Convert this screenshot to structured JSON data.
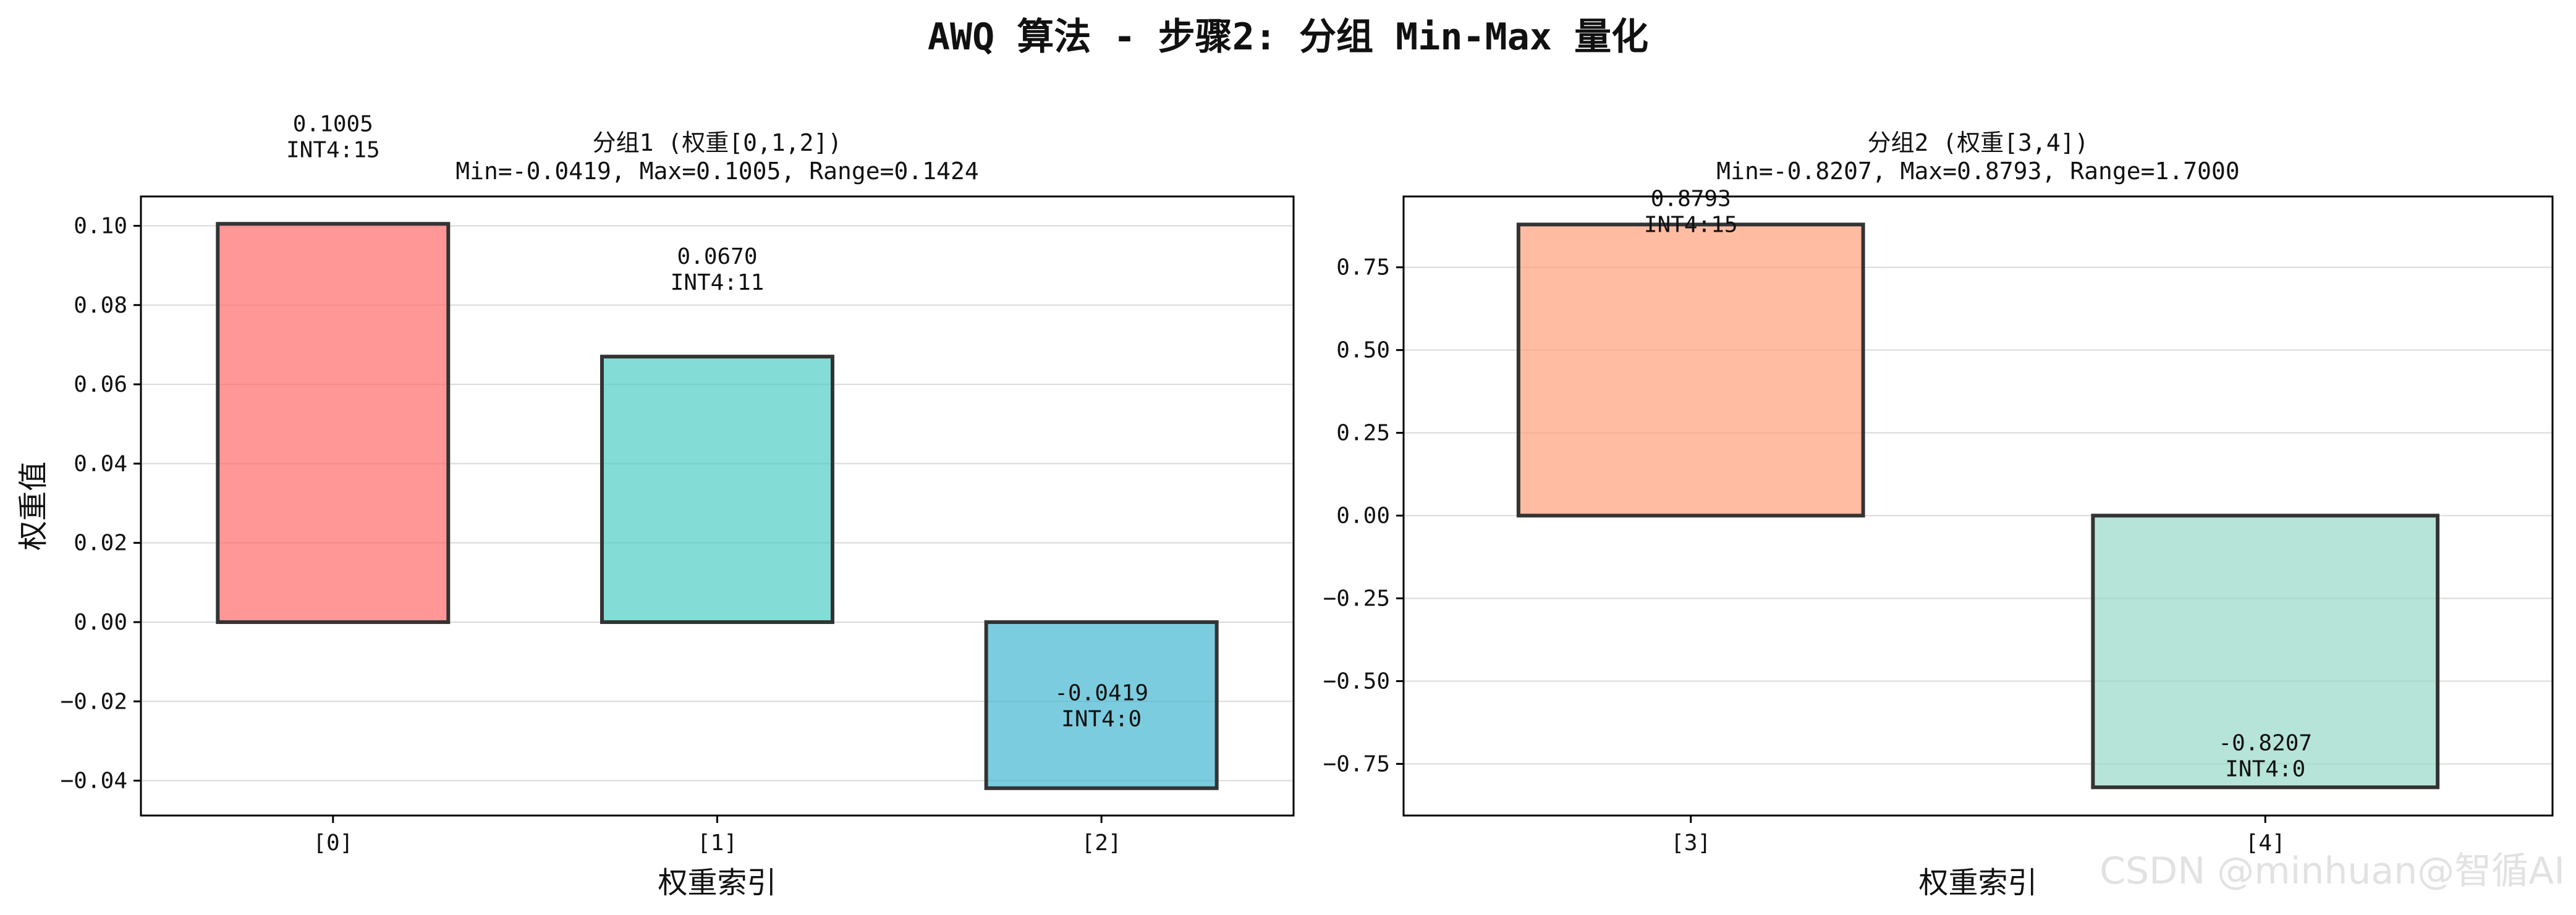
{
  "figure": {
    "suptitle": "AWQ 算法 - 步骤2: 分组 Min-Max 量化",
    "watermark": "CSDN @minhuan@智循AI"
  },
  "chart_data": [
    {
      "type": "bar",
      "title": "分组1 (权重[0,1,2])",
      "subtitle": "Min=-0.0419, Max=0.1005, Range=0.1424",
      "xlabel": "权重索引",
      "ylabel": "权重值",
      "categories": [
        "[0]",
        "[1]",
        "[2]"
      ],
      "values": [
        0.1005,
        0.067,
        -0.0419
      ],
      "int4": [
        15,
        11,
        0
      ],
      "value_labels": [
        "0.1005",
        "0.0670",
        "-0.0419"
      ],
      "int4_labels": [
        "INT4:15",
        "INT4:11",
        "INT4:0"
      ],
      "colors": [
        "#ff6b6b",
        "#4ecdc4",
        "#45b7d1"
      ],
      "ylim": [
        -0.0488,
        0.1074
      ],
      "yticks": [
        -0.04,
        -0.02,
        0.0,
        0.02,
        0.04,
        0.06,
        0.08,
        0.1
      ],
      "ytick_labels": [
        "−0.04",
        "−0.02",
        "0.00",
        "0.02",
        "0.04",
        "0.06",
        "0.08",
        "0.10"
      ],
      "grid": true
    },
    {
      "type": "bar",
      "title": "分组2 (权重[3,4])",
      "subtitle": "Min=-0.8207, Max=0.8793, Range=1.7000",
      "xlabel": "权重索引",
      "ylabel": "",
      "categories": [
        "[3]",
        "[4]"
      ],
      "values": [
        0.8793,
        -0.8207
      ],
      "int4": [
        15,
        0
      ],
      "value_labels": [
        "0.8793",
        "-0.8207"
      ],
      "int4_labels": [
        "INT4:15",
        "INT4:0"
      ],
      "colors": [
        "#ffa07a",
        "#98d8c8"
      ],
      "ylim": [
        -0.906,
        0.964
      ],
      "yticks": [
        -0.75,
        -0.5,
        -0.25,
        0.0,
        0.25,
        0.5,
        0.75
      ],
      "ytick_labels": [
        "−0.75",
        "−0.50",
        "−0.25",
        "0.00",
        "0.25",
        "0.50",
        "0.75"
      ],
      "grid": true
    }
  ]
}
